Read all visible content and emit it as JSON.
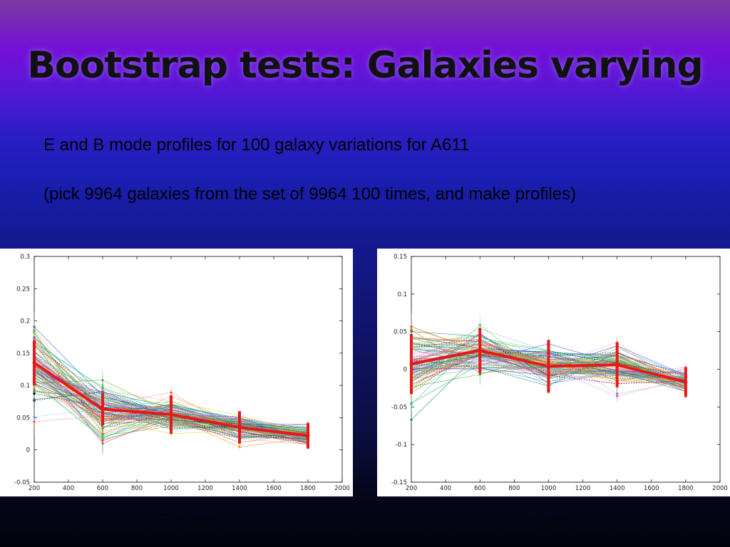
{
  "slide": {
    "title": "Bootstrap tests: Galaxies varying",
    "line1": "E and B mode profiles for 100 galaxy variations for A611",
    "line2": "(pick 9964 galaxies from the set of 9964 100 times, and make profiles)"
  },
  "chart_data": [
    {
      "type": "line",
      "caption": "E profile",
      "xlim": [
        200,
        2000
      ],
      "ylim": [
        -0.05,
        0.3
      ],
      "x_ticks": [
        "200",
        "400",
        "600",
        "800",
        "1000",
        "1200",
        "1400",
        "1600",
        "1800",
        "2000"
      ],
      "y_ticks": [
        "-0.05",
        "0",
        "0.05",
        "0.1",
        "0.15",
        "0.2",
        "0.25",
        "0.3"
      ],
      "x": [
        200,
        600,
        1000,
        1400,
        1800
      ],
      "mean_series": {
        "color": "#e81818",
        "values": [
          0.135,
          0.063,
          0.055,
          0.035,
          0.022
        ],
        "errors": [
          0.035,
          0.025,
          0.03,
          0.025,
          0.02
        ]
      },
      "variation_count": 100,
      "variation_spread": [
        0.045,
        0.035,
        0.02,
        0.015,
        0.012
      ]
    },
    {
      "type": "line",
      "caption": "B profile",
      "xlim": [
        200,
        2000
      ],
      "ylim": [
        -0.15,
        0.15
      ],
      "x_ticks": [
        "200",
        "400",
        "600",
        "800",
        "1000",
        "1200",
        "1400",
        "1600",
        "1800",
        "2000"
      ],
      "y_ticks": [
        "-0.15",
        "-0.1",
        "-0.05",
        "0",
        "0.05",
        "0.1",
        "0.15"
      ],
      "x": [
        200,
        600,
        1000,
        1400,
        1800
      ],
      "mean_series": {
        "color": "#e81818",
        "values": [
          0.007,
          0.025,
          0.004,
          0.006,
          -0.017
        ],
        "errors": [
          0.04,
          0.03,
          0.035,
          0.03,
          0.02
        ]
      },
      "variation_count": 100,
      "variation_spread": [
        0.04,
        0.025,
        0.022,
        0.02,
        0.01
      ]
    }
  ],
  "palette": [
    "#ff4040",
    "#30b030",
    "#3050ff",
    "#ff40ff",
    "#20c8c8",
    "#e0d020",
    "#000000",
    "#ff9020",
    "#9050c0",
    "#808080",
    "#40e040",
    "#c06020",
    "#60a0ff",
    "#ffa0c0",
    "#008060"
  ]
}
